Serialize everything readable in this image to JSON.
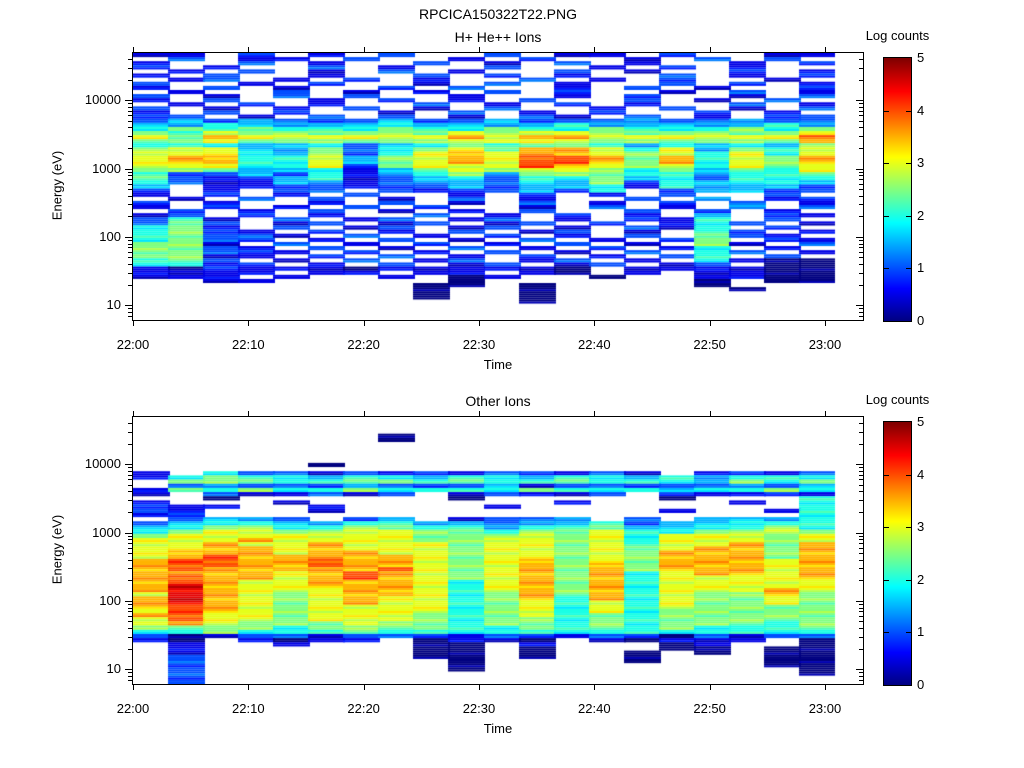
{
  "title": "RPCICA150322T22.PNG",
  "colors": {
    "background": "#ffffff",
    "axis": "#000000",
    "colormap_min": "#000080",
    "colormap_max": "#800000"
  },
  "chart_data": [
    {
      "type": "heatmap",
      "title": "H+ He++ Ions",
      "xlabel": "Time",
      "ylabel": "Energy (eV)",
      "colorbar_label": "Log counts",
      "colorbar_tick_labels": [
        "0",
        "1",
        "2",
        "3",
        "4",
        "5"
      ],
      "value_range": [
        0,
        5
      ],
      "colormap": "jet",
      "x_tick_labels": [
        "22:00",
        "22:10",
        "22:20",
        "22:30",
        "22:40",
        "22:50",
        "23:00"
      ],
      "x_start": "22:00",
      "x_end": "23:00",
      "n_time_bins": 20,
      "y_scale": "log",
      "y_tick_labels": [
        "10",
        "100",
        "1000",
        "10000"
      ],
      "energy_top_ev": 49000,
      "energy_bottom_ev": 6.1,
      "n_energy_bins": 64,
      "cell_encoding": "rows top(49000 eV) to bottom(6 eV); char '.'=no data(white); digits '0'-'9','a' = log10 counts 0.0..5.0 in 0.5 steps",
      "rows_top_to_bottom": [
        "11.2.1.2..2.11.2..11",
        ".2.11.2..1.2..1.2.2.",
        "1..2.1..2.1.2.1..1.2",
        "2.1..2.1..2..1.2.1..",
        ".1.2.1.2.1..2.1..2.1",
        "1.2..1..2.2.1..2.1.2",
        ".12.1.2.1..2.1.2..1.",
        "2..1.2..1.2.1..2.2.1",
        "1.2.1..2.2..1.2.1..2",
        ".1..2.1.1.2.2..1.2.1",
        "2.1.2.2..1..1.2..1.2",
        "1.2..1.2.1.2..2.1.2.",
        ".1.2.1..2.1.2.1..2.1",
        "2.1.1.2.1.2..1.2.1.2",
        "1.2.2..1.2.1.2..2.1.",
        "22.1.2.2.1.21.2.1.22",
        "23232223223222322322",
        "33433334333343333343",
        "45454445445445444545",
        "54655555565665555556",
        "65766666676776666668",
        "55655555566665555557",
        "44433423454554343435",
        "56633524565776463546",
        "66643524676776564646",
        "67744635676887574657",
        "67744635676887574657",
        "66644625666876564656",
        "55533413565665453546",
        "42232413453555443445",
        "52123412342445342444",
        "42113312332435243443",
        "3.112212232334143332",
        "2.1.22.2122324.23322",
        "1.2.1.2..1.2.1.2..2.",
        ".1.2.2.1.2.1..2.3.12",
        "2.1..1.2.1.2.1.2.2.1",
        "1.2.1.2.2..1.2.1.3.2",
        ".2.1.2.1.1.2..2.2.1.",
        "12.2.1..2.1.2.1.3.21",
        "241.2.12.12.1.214.2.",
        "252.12.12.12.2.142.1",
        "451.2.12.12.1.214.2.",
        "4521.2.1.2.12.1.42.1",
        "45221.2.1.2.1.2.521.",
        "4522.1.2.1.2.1.25.21",
        "551.2.1.2.1.2.1.51.2",
        "5521.2.1.2.1.2.14.1.",
        "55221.2.1.2.1.2.42.1",
        "5511.2.2.1.2.1.24.2.",
        "452.1.2.12.12.1.4100",
        "4412.1.2.12.12.12.00",
        "1021110111110.111100",
        "1111.11.11.10.1.1100",
        "111.1..1.01..0..1100",
        "..11.....0......0.00",
        "........00.0....0...",
        "........0..0.....0..",
        "........0..0........",
        "........0..0........",
        "...........0........",
        "....................",
        "....................",
        "....................",
        "...................."
      ]
    },
    {
      "type": "heatmap",
      "title": "Other Ions",
      "xlabel": "Time",
      "ylabel": "Energy (eV)",
      "colorbar_label": "Log counts",
      "colorbar_tick_labels": [
        "0",
        "1",
        "2",
        "3",
        "4",
        "5"
      ],
      "value_range": [
        0,
        5
      ],
      "colormap": "jet",
      "x_tick_labels": [
        "22:00",
        "22:10",
        "22:20",
        "22:30",
        "22:40",
        "22:50",
        "23:00"
      ],
      "x_start": "22:00",
      "x_end": "23:00",
      "n_time_bins": 20,
      "y_scale": "log",
      "y_tick_labels": [
        "10",
        "100",
        "1000",
        "10000"
      ],
      "energy_top_ev": 49000,
      "energy_bottom_ev": 6.1,
      "n_energy_bins": 64,
      "cell_encoding": "rows top(49000 eV) to bottom(6 eV); char '.'=no data(white); digits '0'-'9','a' = log10 counts 0.0..5.0 in 0.5 steps",
      "rows_top_to_bottom": [
        "....................",
        "....................",
        "....................",
        "....................",
        ".......0............",
        ".......0............",
        "....................",
        "....................",
        "....................",
        "....................",
        "....................",
        ".....0..............",
        "....................",
        "1.4221212122121.1212",
        "14544344344344343444",
        ".5554455454454443545",
        ".2322232223122222323",
        "15454454444544434454",
        "1.211212.12112.21121",
        "..0......0.....0...4",
        "1...1.......1....1.4",
        "211..1....1........4",
        "21...1.........1..14",
        "12.................4",
        ".2332.23.1223.2.3334",
        "23443344332334233444",
        "34554455443445334454",
        "45665566554556445565",
        "56666666555656466656",
        "66676666556656466656",
        "66766766656656466757",
        "66776766656656567757",
        "67776776656656577757",
        "67877777656656577757",
        "78877877656756577767",
        "78877877656757577767",
        "78777778656757577767",
        "77776787656757467767",
        "78776787656757466667",
        "78766777646757466666",
        "79766777646757466666",
        "79766677646757466676",
        "69765677645757465575",
        "79765676645747465565",
        "79765676645646465565",
        "78765666645646465555",
        "68765666645646455555",
        "78665666545645455555",
        "68665666545545455555",
        "67655565545545455545",
        "55554555544545454445",
        "44544454444444444444",
        "20122122212212202122",
        "10.1011.0110.10111.0",
        ".1..1...00.1...01..0",
        ".1......00.0...00.00",
        ".1......00.0..0.0.00",
        ".2......00.0..0...00",
        ".2.......0....0...00",
        ".2.......0........00",
        ".2.......0.........0",
        ".2.................0",
        ".2..................",
        ".2.................."
      ]
    }
  ]
}
